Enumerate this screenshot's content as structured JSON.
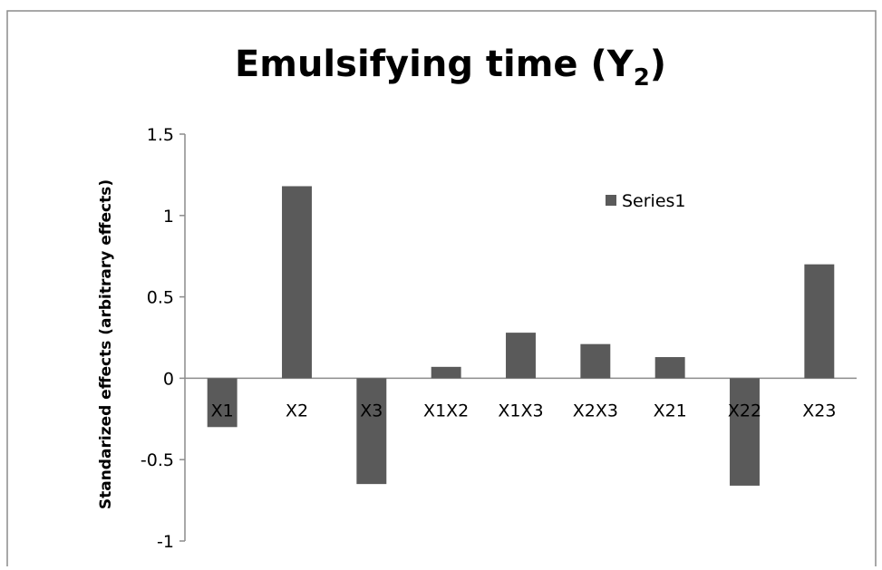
{
  "chart_data": {
    "type": "bar",
    "title": "Emulsifying time (Y",
    "title_subscript": "2",
    "title_suffix": ")",
    "xlabel": "",
    "ylabel": "Standarized effects (arbitrary effects)",
    "categories": [
      "X1",
      "X2",
      "X3",
      "X1X2",
      "X1X3",
      "X2X3",
      "X21",
      "X22",
      "X23"
    ],
    "series": [
      {
        "name": "Series1",
        "values": [
          -0.3,
          1.18,
          -0.65,
          0.07,
          0.28,
          0.21,
          0.13,
          -0.66,
          0.7
        ],
        "color": "#5a5a5a"
      }
    ],
    "yticks": [
      "1.5",
      "1",
      "0.5",
      "0",
      "-0.5",
      "-1"
    ],
    "ylim": [
      -1,
      1.5
    ],
    "grid": false,
    "legend_position": "top-right"
  }
}
